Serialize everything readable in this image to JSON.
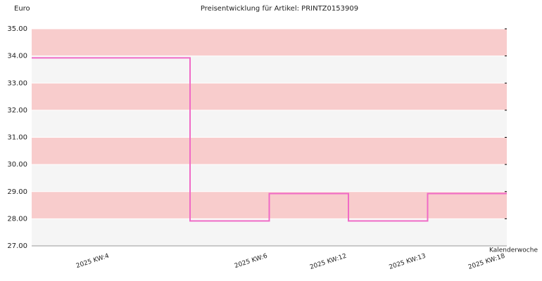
{
  "chart_data": {
    "type": "step",
    "title": "Preisentwicklung für Artikel: PRINTZ0153909",
    "y_label": "Euro",
    "x_label": "Kalenderwoche",
    "categories": [
      "2025 KW:4",
      null,
      "2025 KW:6",
      "2025 KW:12",
      "2025 KW:13",
      "2025 KW:18"
    ],
    "values": [
      33.93,
      33.93,
      27.92,
      28.93,
      27.92,
      28.93
    ],
    "color": "#f06ac6",
    "band_colors": [
      "#f5f5f5",
      "#f8cccc"
    ],
    "ylim": [
      27,
      35
    ],
    "yticks": [
      {
        "value": 27,
        "label": "27.00"
      },
      {
        "value": 28,
        "label": "28.00"
      },
      {
        "value": 29,
        "label": "29.00"
      },
      {
        "value": 30,
        "label": "30.00"
      },
      {
        "value": 31,
        "label": "31.00"
      },
      {
        "value": 32,
        "label": "32.00"
      },
      {
        "value": 33,
        "label": "33.00"
      },
      {
        "value": 34,
        "label": "34.00"
      },
      {
        "value": 35,
        "label": "35.00"
      }
    ]
  }
}
